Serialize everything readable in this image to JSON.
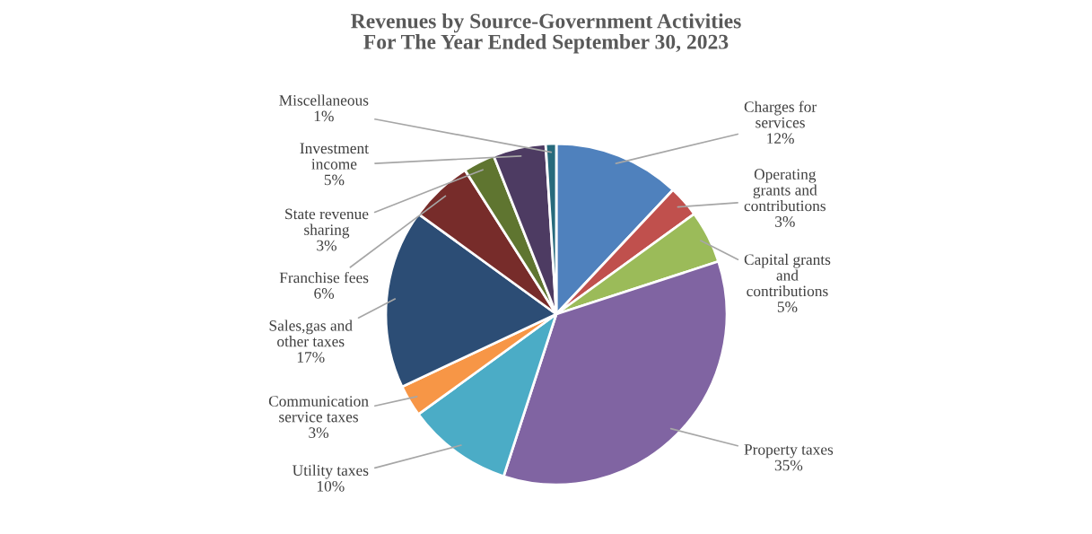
{
  "chart_data": {
    "type": "pie",
    "title": "Revenues by Source-Government Activities\nFor The Year Ended September 30, 2023",
    "categories": [
      "Charges for\nservices",
      "Operating\ngrants and\ncontributions",
      "Capital grants\nand\ncontributions",
      "Property taxes",
      "Utility taxes",
      "Communication\nservice taxes",
      "Sales,gas and\nother taxes",
      "Franchise fees",
      "State revenue\nsharing",
      "Investment\nincome",
      "Miscellaneous"
    ],
    "values": [
      12,
      3,
      5,
      35,
      10,
      3,
      17,
      6,
      3,
      5,
      1
    ],
    "value_labels": [
      "12%",
      "3%",
      "5%",
      "35%",
      "10%",
      "3%",
      "17%",
      "6%",
      "3%",
      "5%",
      "1%"
    ],
    "colors": [
      "#4f81bd",
      "#c0504d",
      "#9bbb59",
      "#8064a2",
      "#4bacc6",
      "#f79646",
      "#2c4d75",
      "#772c2a",
      "#5f7530",
      "#4d3b62",
      "#276a7c"
    ]
  }
}
